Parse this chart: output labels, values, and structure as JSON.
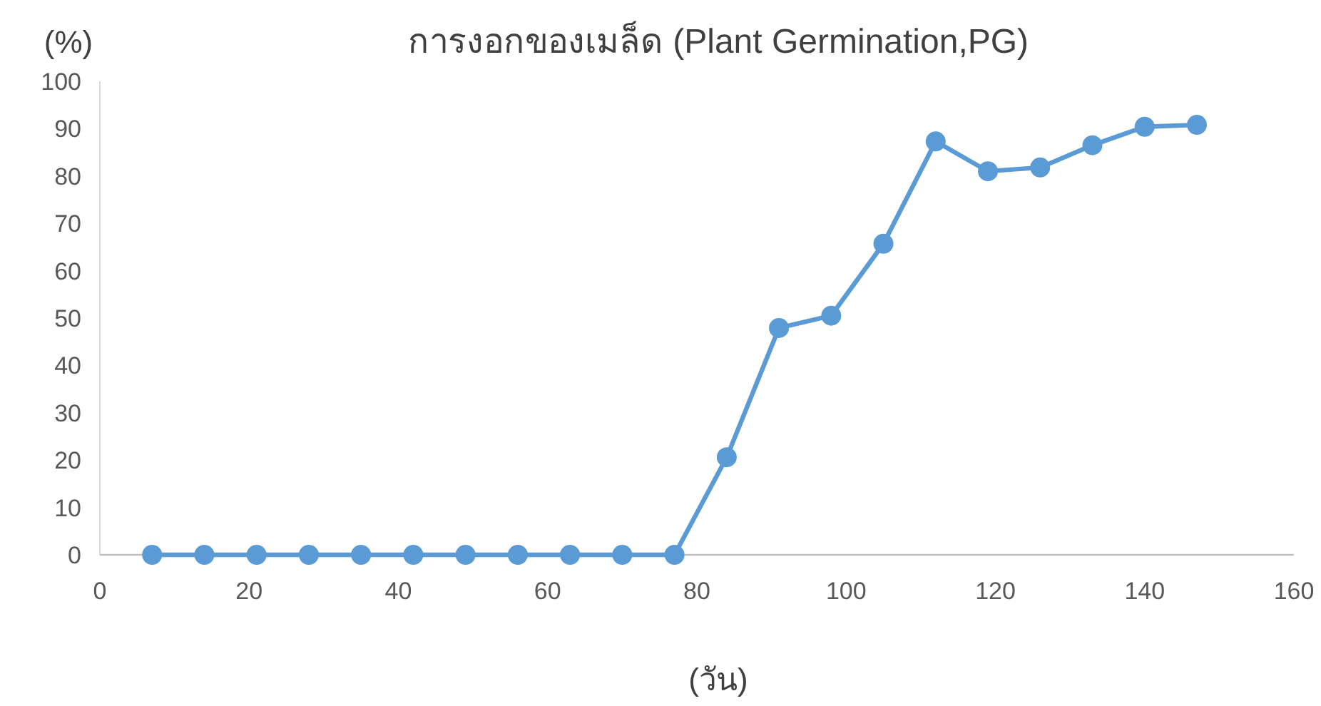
{
  "chart_data": {
    "type": "line",
    "title": "การงอกของเมล็ด (Plant Germination,PG)",
    "xlabel": "(วัน)",
    "ylabel": "(%)",
    "x": [
      7,
      14,
      21,
      28,
      35,
      42,
      49,
      56,
      63,
      70,
      77,
      84,
      91,
      98,
      105,
      112,
      119,
      126,
      133,
      140,
      147
    ],
    "series": [
      {
        "color": "#5b9bd5",
        "values": [
          0,
          0,
          0,
          0,
          0,
          0,
          0,
          0,
          0,
          0,
          0,
          20.6,
          47.9,
          50.5,
          65.7,
          87.3,
          81,
          81.8,
          86.5,
          90.4,
          90.8
        ]
      }
    ],
    "xlim": [
      0,
      160
    ],
    "xticks": [
      0,
      20,
      40,
      60,
      80,
      100,
      120,
      140,
      160
    ],
    "ylim": [
      0,
      100
    ],
    "yticks": [
      0,
      10,
      20,
      30,
      40,
      50,
      60,
      70,
      80,
      90,
      100
    ],
    "marker": "circle",
    "line_style": "solid"
  }
}
